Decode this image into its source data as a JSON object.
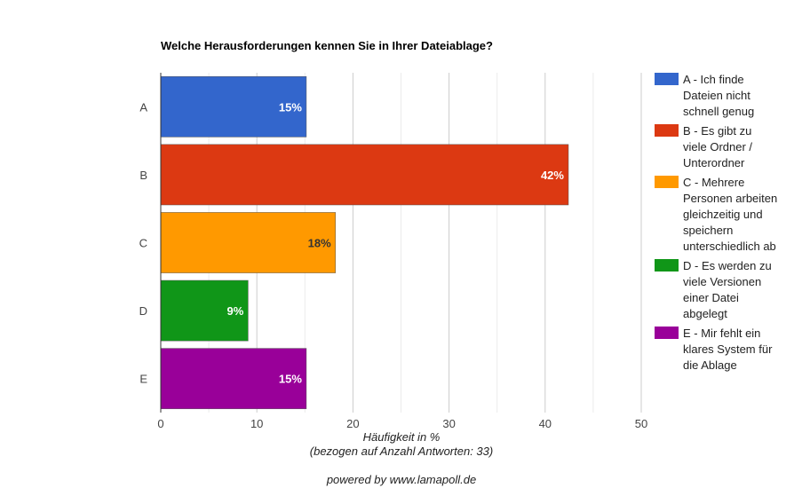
{
  "chart_data": {
    "type": "bar",
    "orientation": "horizontal",
    "title": "Welche Herausforderungen kennen Sie in Ihrer Dateiablage?",
    "categories": [
      "A",
      "B",
      "C",
      "D",
      "E"
    ],
    "values": [
      15,
      42,
      18,
      9,
      15
    ],
    "value_labels": [
      "15%",
      "42%",
      "18%",
      "9%",
      "15%"
    ],
    "bar_values": [
      15.15,
      42.42,
      18.18,
      9.09,
      15.15
    ],
    "colors": [
      "#3366cc",
      "#dc3912",
      "#ff9900",
      "#109618",
      "#990099"
    ],
    "label_colors": [
      "#ffffff",
      "#ffffff",
      "#333333",
      "#ffffff",
      "#ffffff"
    ],
    "xlim": [
      0,
      50
    ],
    "xticks": [
      0,
      10,
      20,
      30,
      40,
      50
    ],
    "xlabel": "Häufigkeit in %",
    "xlabel_sub": "(bezogen auf Anzahl Antworten: 33)",
    "grid": true,
    "legend_position": "right",
    "legend": [
      {
        "label": "A - Ich finde Dateien nicht schnell genug",
        "lines": [
          "A - Ich finde",
          "Dateien nicht",
          "schnell genug"
        ]
      },
      {
        "label": "B - Es gibt zu viele Ordner / Unterordner",
        "lines": [
          "B - Es gibt zu",
          "viele Ordner /",
          "Unterordner"
        ]
      },
      {
        "label": "C - Mehrere Personen arbeiten gleichzeitig und speichern unterschiedlich ab",
        "lines": [
          "C - Mehrere",
          "Personen arbeiten",
          "gleichzeitig und",
          "speichern",
          "unterschiedlich ab"
        ]
      },
      {
        "label": "D - Es werden zu viele Versionen einer Datei abgelegt",
        "lines": [
          "D - Es werden zu",
          "viele Versionen",
          "einer Datei",
          "abgelegt"
        ]
      },
      {
        "label": "E - Mir fehlt ein klares System für die Ablage",
        "lines": [
          "E - Mir fehlt ein",
          "klares System für",
          "die Ablage"
        ]
      }
    ]
  },
  "footer": "powered by www.lamapoll.de"
}
